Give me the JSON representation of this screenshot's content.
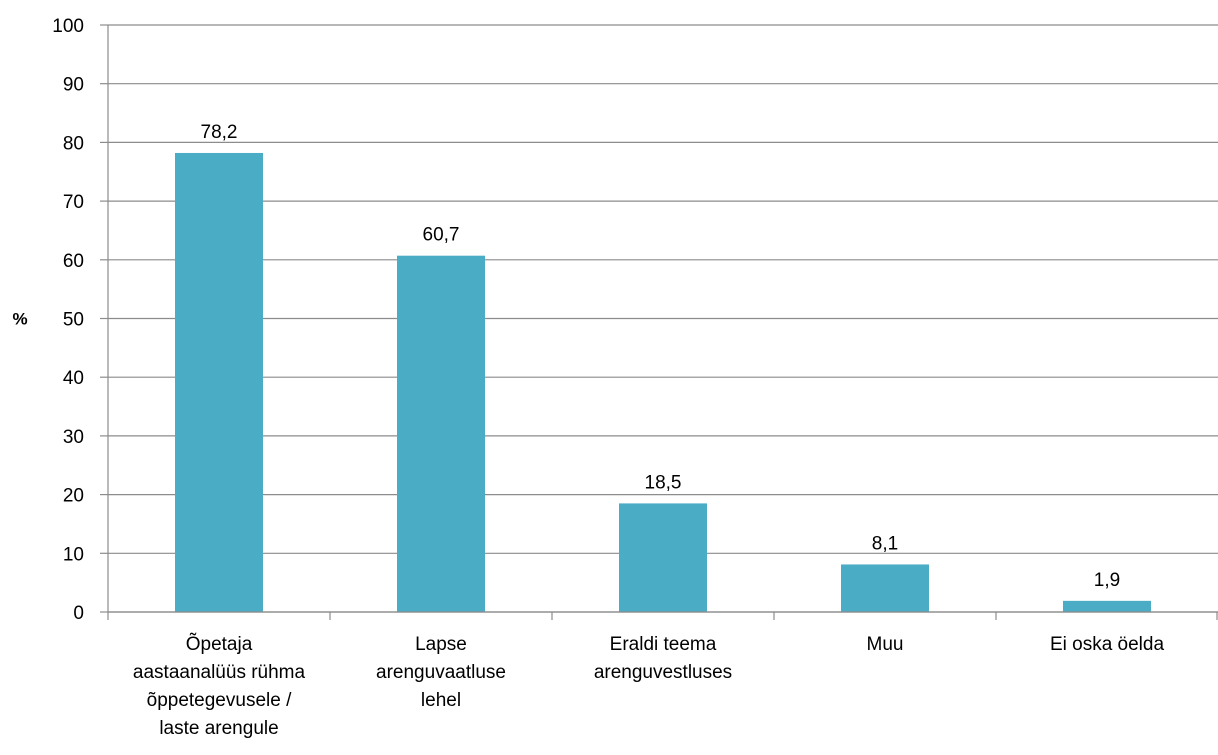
{
  "chart_data": {
    "type": "bar",
    "title": "",
    "xlabel": "",
    "ylabel": "%",
    "ylim": [
      0,
      100
    ],
    "yticks": [
      0,
      10,
      20,
      30,
      40,
      50,
      60,
      70,
      80,
      90,
      100
    ],
    "grid": true,
    "legend": "none",
    "categories": [
      [
        "Õpetaja",
        "aastaanalüüs rühma",
        "õppetegevusele /",
        "laste arengule"
      ],
      [
        "Lapse",
        "arenguvaatluse",
        "lehel"
      ],
      [
        "Eraldi teema",
        "arenguvestluses"
      ],
      [
        "Muu"
      ],
      [
        "Ei oska öelda"
      ]
    ],
    "values": [
      78.2,
      60.7,
      18.5,
      8.1,
      1.9
    ],
    "data_labels": [
      "78,2",
      "60,7",
      "18,5",
      "8,1",
      "1,9"
    ],
    "bar_color": "#4bacc6"
  }
}
